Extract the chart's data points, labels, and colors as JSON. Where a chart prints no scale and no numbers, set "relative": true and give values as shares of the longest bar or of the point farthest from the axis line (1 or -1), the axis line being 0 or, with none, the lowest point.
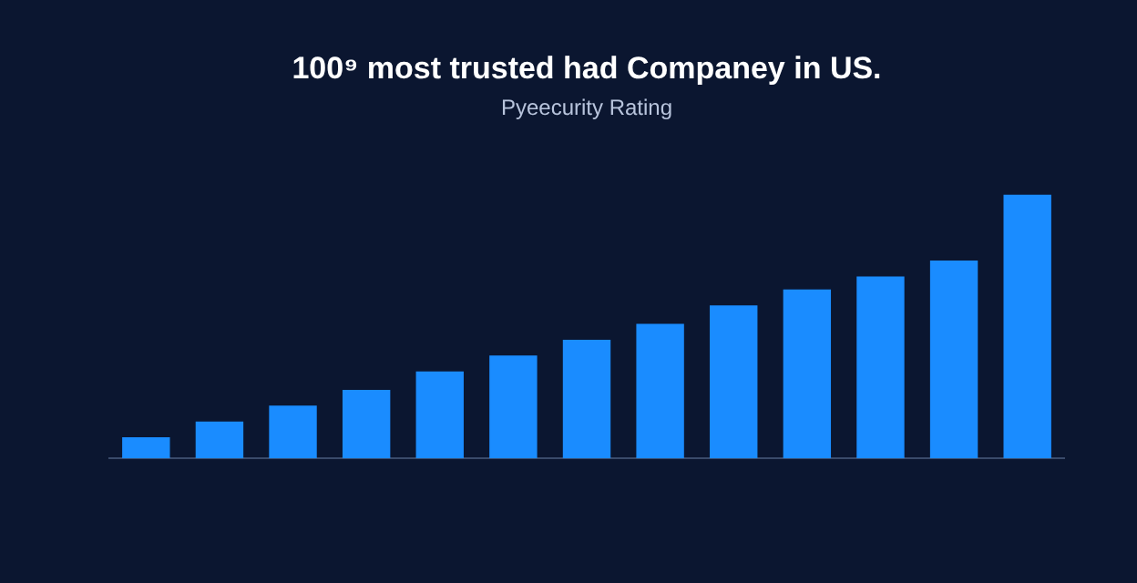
{
  "chart_data": {
    "type": "bar",
    "title": "100⁹ most trusted had Companey in US.",
    "subtitle": "Pyeecurity Rating",
    "relative": true,
    "categories": [
      null,
      null,
      null,
      null,
      null,
      null,
      null,
      null,
      null,
      null,
      null,
      null,
      null
    ],
    "values": [
      0.08,
      0.14,
      0.2,
      0.26,
      0.33,
      0.39,
      0.45,
      0.51,
      0.58,
      0.64,
      0.69,
      0.75,
      1
    ],
    "color": "#1a8cff",
    "legend": false
  }
}
